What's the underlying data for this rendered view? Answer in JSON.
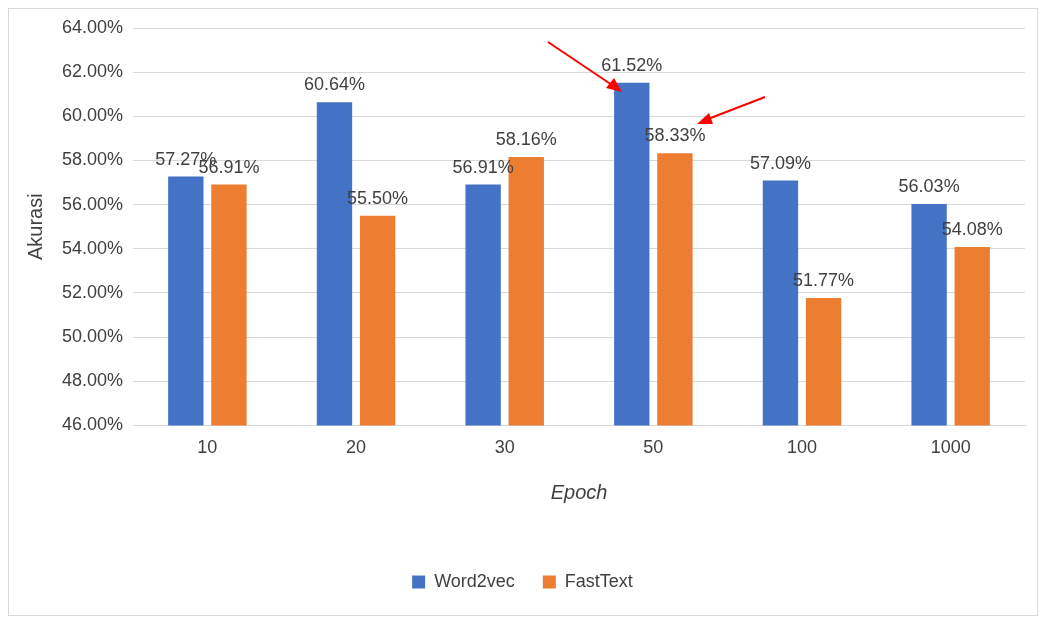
{
  "chart_data": {
    "type": "bar",
    "xlabel": "Epoch",
    "ylabel": "Akurasi",
    "categories": [
      "10",
      "20",
      "30",
      "50",
      "100",
      "1000"
    ],
    "series": [
      {
        "name": "Word2vec",
        "color": "#4472c4",
        "values": [
          57.27,
          60.64,
          56.91,
          61.52,
          57.09,
          56.03
        ],
        "value_labels": [
          "57.27%",
          "60.64%",
          "56.91%",
          "61.52%",
          "57.09%",
          "56.03%"
        ]
      },
      {
        "name": "FastText",
        "color": "#ed7d31",
        "values": [
          56.91,
          55.5,
          58.16,
          58.33,
          51.77,
          54.08
        ],
        "value_labels": [
          "56.91%",
          "55.50%",
          "58.16%",
          "58.33%",
          "51.77%",
          "54.08%"
        ]
      }
    ],
    "ylim": [
      46,
      64
    ],
    "yticks": [
      {
        "value": 46,
        "label": "46.00%"
      },
      {
        "value": 48,
        "label": "48.00%"
      },
      {
        "value": 50,
        "label": "50.00%"
      },
      {
        "value": 52,
        "label": "52.00%"
      },
      {
        "value": 54,
        "label": "54.00%"
      },
      {
        "value": 56,
        "label": "56.00%"
      },
      {
        "value": 58,
        "label": "58.00%"
      },
      {
        "value": 60,
        "label": "60.00%"
      },
      {
        "value": 62,
        "label": "62.00%"
      },
      {
        "value": 64,
        "label": "64.00%"
      }
    ],
    "grid": "y",
    "legend": "bottom"
  }
}
